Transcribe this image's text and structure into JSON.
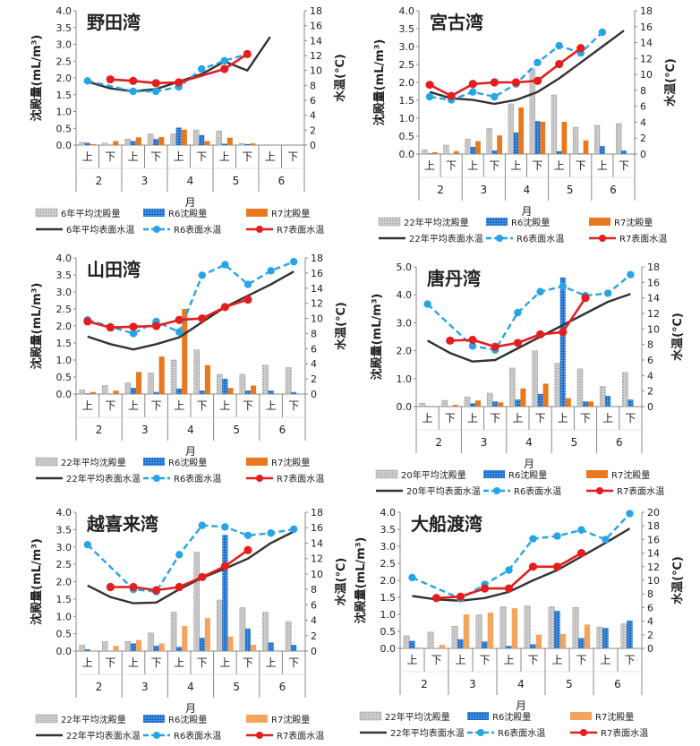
{
  "common": {
    "ylabel_left": "沈殿量(mL/m³)",
    "ylabel_right": "水温(℃)",
    "xlabel": "月",
    "months": [
      "2",
      "3",
      "4",
      "5",
      "6"
    ],
    "halves": [
      "上",
      "下",
      "上",
      "下",
      "上",
      "下",
      "上",
      "下",
      "上",
      "下"
    ],
    "colors": {
      "avg_bar": "#c8c8c8",
      "r6_bar": "#1f6fc8",
      "r7_bar": "#e8781e",
      "r7_bar_light": "#f4a45c",
      "avg_line": "#333333",
      "r6_line": "#27a4e6",
      "r7_line": "#e41e1e"
    }
  },
  "chart_data": [
    {
      "type": "bar+line",
      "title": "野田湾",
      "ylim": [
        0,
        4.0
      ],
      "y2lim": [
        0,
        18
      ],
      "ytick_step": 0.5,
      "y2tick_step": 2,
      "legend": [
        "6年平均沈殿量",
        "R6沈殿量",
        "R7沈殿量",
        "6年平均表面水温",
        "R6表面水温",
        "R7表面水温"
      ],
      "avg_bar": [
        0.08,
        0.06,
        0.18,
        0.33,
        0.33,
        0.45,
        0.42,
        0.05,
        0,
        0
      ],
      "r6_bar": [
        0.07,
        0,
        0.12,
        0.18,
        0.52,
        0.3,
        0.04,
        0.03,
        0,
        0
      ],
      "r7_bar": [
        0.03,
        0.12,
        0.23,
        0.24,
        0.46,
        0.12,
        0.22,
        0.05,
        0,
        0
      ],
      "avg_line": [
        [
          0,
          8.5
        ],
        [
          1,
          7.6
        ],
        [
          2,
          7.2
        ],
        [
          3,
          7.5
        ],
        [
          4,
          8.5
        ],
        [
          5,
          9.5
        ],
        [
          6,
          11.2
        ],
        [
          7,
          10.0
        ],
        [
          8,
          14.5
        ]
      ],
      "r6_line": [
        [
          0,
          8.6
        ],
        [
          2,
          7.2
        ],
        [
          3,
          7.2
        ],
        [
          4,
          7.8
        ],
        [
          5,
          10.2
        ],
        [
          6,
          11.3
        ],
        [
          7,
          12.2
        ]
      ],
      "r7_line": [
        [
          1,
          8.8
        ],
        [
          2,
          8.6
        ],
        [
          3,
          8.3
        ],
        [
          4,
          8.4
        ],
        [
          6,
          10.2
        ],
        [
          7,
          12.2
        ]
      ]
    },
    {
      "type": "bar+line",
      "title": "宮古湾",
      "ylim": [
        0,
        4.0
      ],
      "y2lim": [
        0,
        18
      ],
      "ytick_step": 0.5,
      "y2tick_step": 2,
      "legend": [
        "22年平均沈殿量",
        "R6沈殿量",
        "R7沈殿量",
        "22年平均表面水温",
        "R6表面水温",
        "R7表面水温"
      ],
      "avg_bar": [
        0.12,
        0.25,
        0.42,
        0.72,
        1.4,
        2.38,
        1.65,
        0.75,
        0.8,
        0.85
      ],
      "r6_bar": [
        0.02,
        0,
        0.2,
        0.1,
        0.6,
        0.92,
        0.08,
        0.02,
        0.22,
        0.1
      ],
      "r7_bar": [
        0.05,
        0.08,
        0.36,
        0.52,
        1.3,
        0.9,
        0.9,
        0.38,
        0,
        0
      ],
      "avg_line": [
        [
          0,
          7.8
        ],
        [
          1,
          7.0
        ],
        [
          2,
          6.8
        ],
        [
          3,
          6.3
        ],
        [
          4,
          6.8
        ],
        [
          5,
          7.8
        ],
        [
          6,
          9.5
        ],
        [
          7,
          11.5
        ],
        [
          8,
          13.5
        ],
        [
          9,
          15.5
        ]
      ],
      "r6_line": [
        [
          0,
          7.2
        ],
        [
          1,
          6.8
        ],
        [
          2,
          7.8
        ],
        [
          3,
          7.2
        ],
        [
          4,
          8.8
        ],
        [
          5,
          11.5
        ],
        [
          6,
          13.6
        ],
        [
          7,
          12.7
        ],
        [
          8,
          15.3
        ]
      ],
      "r7_line": [
        [
          0,
          8.7
        ],
        [
          1,
          7.3
        ],
        [
          2,
          8.8
        ],
        [
          3,
          9.0
        ],
        [
          4,
          9.0
        ],
        [
          5,
          9.2
        ],
        [
          6,
          11.3
        ],
        [
          7,
          13.3
        ]
      ]
    },
    {
      "type": "bar+line",
      "title": "山田湾",
      "ylim": [
        0,
        4.0
      ],
      "y2lim": [
        0,
        18
      ],
      "ytick_step": 0.5,
      "y2tick_step": 2,
      "legend": [
        "22年平均沈殿量",
        "R6沈殿量",
        "R7沈殿量",
        "22年平均表面水温",
        "R6表面水温",
        "R7表面水温"
      ],
      "avg_bar": [
        0.12,
        0.25,
        0.33,
        0.62,
        1.0,
        1.3,
        0.58,
        0.58,
        0.85,
        0.78
      ],
      "r6_bar": [
        0.02,
        0,
        0.18,
        0.06,
        0.16,
        0.1,
        0.45,
        0.1,
        0.1,
        0.06
      ],
      "r7_bar": [
        0.06,
        0.1,
        0.65,
        1.1,
        2.5,
        0.85,
        0.18,
        0.25,
        0,
        0
      ],
      "avg_line": [
        [
          0,
          7.6
        ],
        [
          1,
          6.6
        ],
        [
          2,
          5.9
        ],
        [
          3,
          6.6
        ],
        [
          4,
          7.5
        ],
        [
          5,
          9.5
        ],
        [
          6,
          11.5
        ],
        [
          7,
          13.0
        ],
        [
          8,
          14.5
        ],
        [
          9,
          16.2
        ]
      ],
      "r6_line": [
        [
          0,
          9.8
        ],
        [
          1,
          8.9
        ],
        [
          2,
          8.0
        ],
        [
          3,
          9.6
        ],
        [
          4,
          8.2
        ],
        [
          5,
          15.7
        ],
        [
          6,
          17.1
        ],
        [
          7,
          14.5
        ],
        [
          8,
          16.3
        ],
        [
          9,
          17.5
        ]
      ],
      "r7_line": [
        [
          0,
          9.6
        ],
        [
          1,
          8.8
        ],
        [
          2,
          8.9
        ],
        [
          3,
          9.0
        ],
        [
          4,
          9.8
        ],
        [
          5,
          10.0
        ],
        [
          6,
          11.5
        ],
        [
          7,
          12.5
        ]
      ]
    },
    {
      "type": "bar+line",
      "title": "唐丹湾",
      "ylim": [
        0,
        5.0
      ],
      "y2lim": [
        0,
        18
      ],
      "ytick_step": 1.0,
      "y2tick_step": 2,
      "legend": [
        "20年平均沈殿量",
        "R6沈殿量",
        "R7沈殿量",
        "20年平均表面水温",
        "R6表面水温",
        "R7表面水温"
      ],
      "avg_bar": [
        0.12,
        0.22,
        0.35,
        0.48,
        1.38,
        2.0,
        1.55,
        1.35,
        0.72,
        1.22
      ],
      "r6_bar": [
        0.02,
        0,
        0.12,
        0.18,
        0.25,
        0.45,
        4.62,
        0.18,
        0.38,
        0.25
      ],
      "r7_bar": [
        0.02,
        0.06,
        0.22,
        0.15,
        0.65,
        0.82,
        0.3,
        0.18,
        0,
        0
      ],
      "avg_line": [
        [
          0,
          8.5
        ],
        [
          1,
          6.9
        ],
        [
          2,
          5.8
        ],
        [
          3,
          6.0
        ],
        [
          4,
          7.5
        ],
        [
          5,
          9.0
        ],
        [
          6,
          10.5
        ],
        [
          7,
          12.0
        ],
        [
          8,
          13.5
        ],
        [
          9,
          14.5
        ]
      ],
      "r6_line": [
        [
          0,
          13.2
        ],
        [
          2,
          7.8
        ],
        [
          3,
          7.3
        ],
        [
          4,
          12.1
        ],
        [
          5,
          14.8
        ],
        [
          6,
          15.5
        ],
        [
          7,
          14.3
        ],
        [
          8,
          14.6
        ],
        [
          9,
          17.0
        ]
      ],
      "r7_line": [
        [
          1,
          8.5
        ],
        [
          2,
          8.6
        ],
        [
          3,
          7.7
        ],
        [
          4,
          8.2
        ],
        [
          5,
          9.3
        ],
        [
          6,
          9.6
        ],
        [
          7,
          14.0
        ]
      ]
    },
    {
      "type": "bar+line",
      "title": "越喜来湾",
      "ylim": [
        0,
        4.0
      ],
      "y2lim": [
        0,
        18
      ],
      "ytick_step": 0.5,
      "y2tick_step": 2,
      "legend": [
        "22年平均沈殿量",
        "R6沈殿量",
        "R7沈殿量",
        "22年平均表面水温",
        "R6表面水温",
        "R7表面水温"
      ],
      "avg_bar": [
        0.17,
        0.27,
        0.28,
        0.52,
        1.12,
        2.85,
        1.47,
        1.25,
        1.12,
        0.85
      ],
      "r6_bar": [
        0.05,
        0,
        0.22,
        0.15,
        0.12,
        0.38,
        3.35,
        0.65,
        0.25,
        0.18
      ],
      "r7_bar": [
        0.02,
        0.15,
        0.32,
        0.22,
        0.72,
        0.95,
        0.42,
        0.18,
        0,
        0
      ],
      "avg_line": [
        [
          0,
          8.5
        ],
        [
          1,
          7.0
        ],
        [
          2,
          6.2
        ],
        [
          3,
          6.3
        ],
        [
          4,
          8.0
        ],
        [
          5,
          9.5
        ],
        [
          6,
          10.7
        ],
        [
          7,
          12.0
        ],
        [
          8,
          14.0
        ],
        [
          9,
          15.5
        ]
      ],
      "r6_line": [
        [
          0,
          13.8
        ],
        [
          2,
          8.0
        ],
        [
          3,
          7.7
        ],
        [
          4,
          12.5
        ],
        [
          5,
          16.3
        ],
        [
          6,
          16.1
        ],
        [
          7,
          15.0
        ],
        [
          8,
          15.3
        ],
        [
          9,
          15.8
        ]
      ],
      "r7_line": [
        [
          1,
          8.3
        ],
        [
          2,
          8.3
        ],
        [
          3,
          7.9
        ],
        [
          4,
          8.3
        ],
        [
          5,
          9.6
        ],
        [
          6,
          11.0
        ],
        [
          7,
          13.1
        ]
      ]
    },
    {
      "type": "bar+line",
      "title": "大船渡湾",
      "ylim": [
        0,
        4.0
      ],
      "y2lim": [
        0,
        20
      ],
      "ytick_step": 0.5,
      "y2tick_step": 2,
      "legend": [
        "22年平均沈殿量",
        "R6沈殿量",
        "R7沈殿量",
        "22年平均表面水温",
        "R6表面水温",
        "R7表面水温"
      ],
      "avg_bar": [
        0.37,
        0.48,
        0.65,
        0.98,
        1.22,
        1.25,
        1.22,
        1.2,
        0.63,
        0.72
      ],
      "r6_bar": [
        0.22,
        0,
        0.27,
        0.2,
        0.07,
        0.12,
        1.1,
        0.3,
        0.6,
        0.82
      ],
      "r7_bar": [
        0.03,
        0.1,
        1.0,
        1.05,
        1.18,
        0.4,
        0.42,
        0.7,
        0,
        0
      ],
      "avg_line": [
        [
          0,
          7.7
        ],
        [
          1,
          7.2
        ],
        [
          2,
          7.0
        ],
        [
          3,
          7.4
        ],
        [
          4,
          8.3
        ],
        [
          5,
          10.0
        ],
        [
          6,
          11.5
        ],
        [
          7,
          13.5
        ],
        [
          8,
          15.5
        ],
        [
          9,
          17.6
        ]
      ],
      "r6_line": [
        [
          0,
          10.4
        ],
        [
          2,
          7.3
        ],
        [
          3,
          9.4
        ],
        [
          4,
          11.5
        ],
        [
          5,
          16.1
        ],
        [
          6,
          16.5
        ],
        [
          7,
          17.4
        ],
        [
          8,
          16.0
        ],
        [
          9,
          19.8
        ]
      ],
      "r7_line": [
        [
          1,
          7.4
        ],
        [
          2,
          7.6
        ],
        [
          3,
          8.8
        ],
        [
          4,
          8.8
        ],
        [
          5,
          12.0
        ],
        [
          6,
          12.0
        ],
        [
          7,
          14.0
        ]
      ]
    }
  ]
}
